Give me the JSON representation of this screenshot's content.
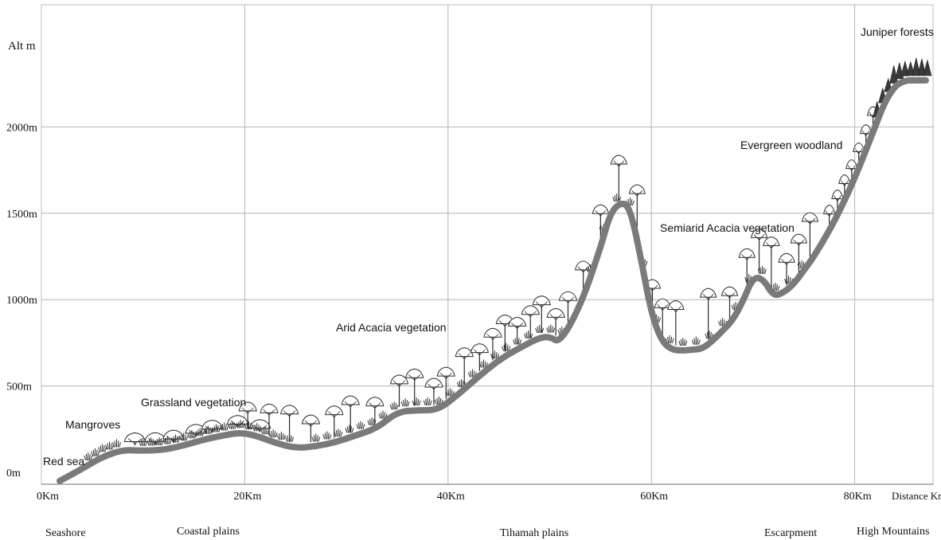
{
  "chart_data": {
    "type": "area",
    "title": "",
    "ylabel": "Alt m",
    "xlabel": "Distance Km",
    "xlim": [
      0,
      88
    ],
    "ylim": [
      -60,
      2550
    ],
    "x_ticks": [
      {
        "value": 0,
        "label": "0Km"
      },
      {
        "value": 20,
        "label": "20Km"
      },
      {
        "value": 40,
        "label": "40Km"
      },
      {
        "value": 60,
        "label": "60Km"
      },
      {
        "value": 80,
        "label": "80Km"
      }
    ],
    "y_ticks": [
      {
        "value": 0,
        "label": "0m"
      },
      {
        "value": 500,
        "label": "500m"
      },
      {
        "value": 1000,
        "label": "1000m"
      },
      {
        "value": 1500,
        "label": "1500m"
      },
      {
        "value": 2000,
        "label": "2000m"
      }
    ],
    "grid": true,
    "profile": {
      "x": [
        1.8,
        4,
        6,
        8,
        10,
        12,
        14,
        16,
        18,
        19.5,
        21,
        23,
        25,
        27,
        29,
        31,
        33,
        35,
        37,
        39,
        41,
        43,
        45,
        47,
        49,
        50,
        51,
        53,
        55,
        56,
        57.2,
        58,
        59,
        60,
        61,
        62,
        63,
        64,
        65,
        66,
        67,
        68,
        69,
        70,
        71,
        72,
        73,
        74,
        75,
        76,
        78,
        80,
        82,
        83,
        84,
        85,
        86,
        87
      ],
      "y": [
        -50,
        20,
        90,
        130,
        125,
        130,
        155,
        190,
        215,
        230,
        215,
        170,
        140,
        150,
        175,
        215,
        255,
        350,
        360,
        360,
        450,
        555,
        650,
        720,
        780,
        785,
        750,
        960,
        1300,
        1510,
        1570,
        1510,
        1230,
        920,
        760,
        710,
        705,
        710,
        715,
        760,
        820,
        880,
        990,
        1130,
        1120,
        1020,
        1040,
        1090,
        1170,
        1250,
        1450,
        1700,
        2000,
        2150,
        2240,
        2270,
        2270,
        2270
      ]
    },
    "vegetation_zones": [
      {
        "name": "Mangroves",
        "x_start": 4,
        "x_end": 8
      },
      {
        "name": "Grassland vegetation",
        "x_start": 8,
        "x_end": 27
      },
      {
        "name": "Arid Acacia vegetation",
        "x_start": 27,
        "x_end": 53
      },
      {
        "name": "Semiarid Acacia vegetation",
        "x_start": 54,
        "x_end": 75
      },
      {
        "name": "Evergreen woodland",
        "x_start": 75,
        "x_end": 82
      },
      {
        "name": "Juniper forests",
        "x_start": 82,
        "x_end": 88
      }
    ]
  },
  "labels": {
    "y_axis_title": "Alt m",
    "x_axis_title": "Distance Km",
    "red_sea": "Red sea",
    "zones": [
      "Mangroves",
      "Grassland vegetation",
      "Arid Acacia vegetation",
      "Semiarid Acacia vegetation",
      "Evergreen woodland",
      "Juniper forests"
    ]
  },
  "regions": [
    "Seashore",
    "Coastal plains",
    "Tihamah plains",
    "Escarpment",
    "High Mountains"
  ],
  "colors": {
    "profile_line": "#7a7a7a",
    "grid": "#b4b4b4",
    "tree": "#2a2a2a",
    "tree_fill": "#ffffff",
    "text": "#111111"
  },
  "icons": [
    "acacia-tree-icon",
    "juniper-tree-icon",
    "shrub-icon"
  ]
}
